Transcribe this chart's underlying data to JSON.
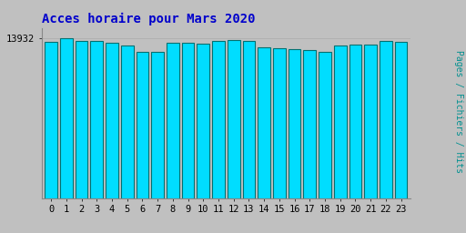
{
  "title": "Acces horaire pour Mars 2020",
  "ylabel_right": "Pages / Fichiers / Hits",
  "ytick_label": "13932",
  "categories": [
    0,
    1,
    2,
    3,
    4,
    5,
    6,
    7,
    8,
    9,
    10,
    11,
    12,
    13,
    14,
    15,
    16,
    17,
    18,
    19,
    20,
    21,
    22,
    23
  ],
  "values": [
    13600,
    13932,
    13650,
    13700,
    13500,
    13300,
    12700,
    12750,
    13500,
    13550,
    13450,
    13700,
    13750,
    13650,
    13150,
    13050,
    12950,
    12850,
    12700,
    13300,
    13350,
    13350,
    13700,
    13600
  ],
  "bar_color": "#00DDFF",
  "bar_edge_color": "#007070",
  "bar_edge_width": 0.8,
  "background_color": "#C0C0C0",
  "plot_bg_color": "#C0C0C0",
  "title_color": "#0000CC",
  "title_fontsize": 10,
  "ylabel_right_color": "#009090",
  "ylabel_right_fontsize": 7,
  "tick_label_color": "#000000",
  "tick_fontsize": 7.5,
  "ytick_value": 13932,
  "ymin": 0,
  "ymax": 14800,
  "bar_width": 0.82
}
